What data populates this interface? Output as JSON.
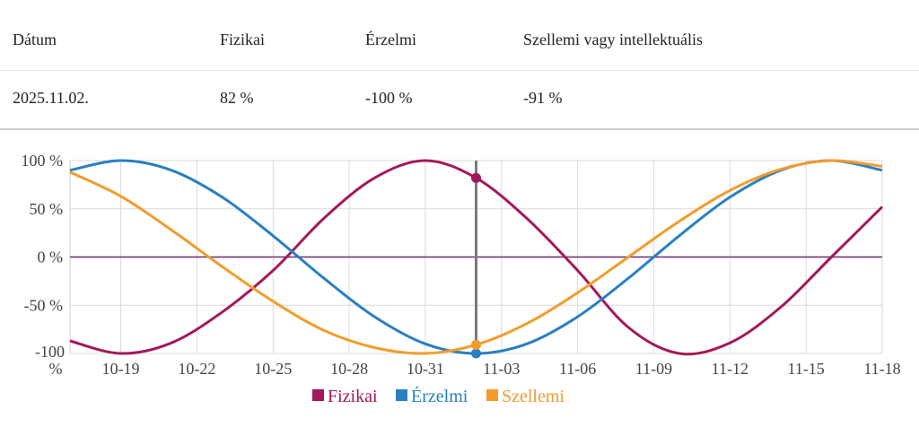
{
  "table": {
    "headers": [
      "Dátum",
      "Fizikai",
      "Érzelmi",
      "Szellemi vagy intellektuális"
    ],
    "row": [
      "2025.11.02.",
      "82 %",
      "-100 %",
      "-91 %"
    ]
  },
  "chart_data": {
    "type": "line",
    "x_tick_labels": [
      "10-19",
      "10-22",
      "10-25",
      "10-28",
      "10-31",
      "11-03",
      "11-06",
      "11-09",
      "11-12",
      "11-15",
      "11-18"
    ],
    "y_tick_labels": [
      "100 %",
      "50 %",
      "0 %",
      "-50 %",
      "-100 %"
    ],
    "ylim": [
      -100,
      100
    ],
    "grid": true,
    "legend_position": "bottom",
    "cursor_day": "11-02",
    "cursor_values": {
      "Fizikai": 82,
      "Érzelmi": -100,
      "Szellemi": -91
    },
    "series": [
      {
        "name": "Fizikai",
        "color": "#a3195b",
        "period": 23,
        "x": [
          "10-17",
          "10-19",
          "10-21",
          "10-23",
          "10-25",
          "10-27",
          "10-29",
          "10-31",
          "11-02",
          "11-04",
          "11-06",
          "11-08",
          "11-10",
          "11-12",
          "11-14",
          "11-16",
          "11-18"
        ],
        "values": [
          -87,
          -100,
          -89,
          -57,
          -14,
          40,
          82,
          100,
          82,
          40,
          -14,
          -73,
          -100,
          -89,
          -52,
          0,
          52
        ]
      },
      {
        "name": "Érzelmi",
        "color": "#2a7fc1",
        "period": 28,
        "x": [
          "10-17",
          "10-19",
          "10-21",
          "10-23",
          "10-25",
          "10-27",
          "10-29",
          "10-31",
          "11-02",
          "11-04",
          "11-06",
          "11-08",
          "11-10",
          "11-12",
          "11-14",
          "11-16",
          "11-18"
        ],
        "values": [
          90,
          100,
          90,
          62,
          22,
          -22,
          -62,
          -90,
          -100,
          -90,
          -62,
          -22,
          22,
          62,
          90,
          100,
          90
        ]
      },
      {
        "name": "Szellemi",
        "color": "#f39c2a",
        "period": 33,
        "x": [
          "10-17",
          "10-19",
          "10-21",
          "10-23",
          "10-25",
          "10-27",
          "10-29",
          "10-31",
          "11-02",
          "11-04",
          "11-06",
          "11-08",
          "11-10",
          "11-12",
          "11-14",
          "11-16",
          "11-18"
        ],
        "values": [
          88,
          63,
          28,
          -10,
          -46,
          -76,
          -94,
          -100,
          -91,
          -69,
          -37,
          0,
          37,
          69,
          91,
          100,
          94
        ]
      }
    ],
    "legend": [
      "Fizikai",
      "Érzelmi",
      "Szellemi"
    ],
    "zero_line_color": "#6b2a6e",
    "cursor_color": "#7a7a7a"
  }
}
